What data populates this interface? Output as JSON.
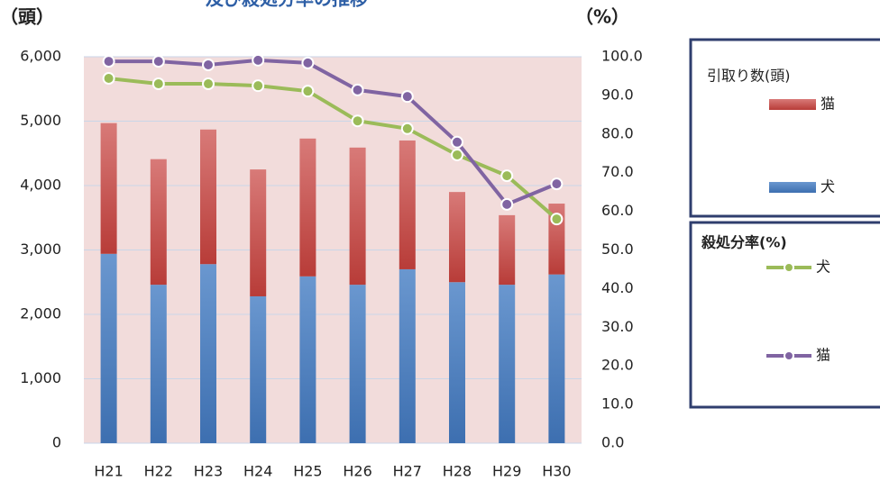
{
  "chart_data": {
    "type": "bar-line",
    "title": "及び殺処分率の推移",
    "y_label": "（頭）",
    "y2_label": "（%）",
    "categories": [
      "H21",
      "H22",
      "H23",
      "H24",
      "H25",
      "H26",
      "H27",
      "H28",
      "H29",
      "H30"
    ],
    "series": [
      {
        "name": "犬",
        "kind": "bar",
        "color": "#4f81bd",
        "values": [
          2940,
          2460,
          2780,
          2280,
          2590,
          2460,
          2700,
          2500,
          2460,
          2620
        ]
      },
      {
        "name": "猫",
        "kind": "bar",
        "color": "#c0504d",
        "values": [
          2030,
          1950,
          2090,
          1970,
          2140,
          2130,
          2000,
          1400,
          1080,
          1100
        ]
      },
      {
        "name": "犬",
        "kind": "line",
        "axis": "y2",
        "color": "#9bbb59",
        "values": [
          94.4,
          93.0,
          93.0,
          92.5,
          91.1,
          83.4,
          81.4,
          74.6,
          69.2,
          58.0
        ]
      },
      {
        "name": "猫",
        "kind": "line",
        "axis": "y2",
        "color": "#8064a2",
        "values": [
          98.8,
          98.8,
          97.9,
          99.1,
          98.4,
          91.4,
          89.7,
          77.9,
          61.8,
          67.1
        ]
      }
    ],
    "legend_titles": [
      "引取り数(頭)",
      "殺処分率(%)"
    ],
    "ylim": [
      0,
      6000
    ],
    "yticks": [
      0,
      {
        "value": 1000,
        "label": "1,000"
      },
      {
        "value": 2000,
        "label": "2,000"
      },
      {
        "value": 3000,
        "label": "3,000"
      },
      {
        "value": 4000,
        "label": "4,000"
      },
      {
        "value": 5000,
        "label": "5,000"
      },
      {
        "value": 6000,
        "label": "6,000"
      }
    ],
    "y2lim": [
      0,
      100
    ],
    "y2ticks": [
      {
        "value": 0,
        "label": "0.0"
      },
      {
        "value": 10,
        "label": "10.0"
      },
      {
        "value": 20,
        "label": "20.0"
      },
      {
        "value": 30,
        "label": "30.0"
      },
      {
        "value": 40,
        "label": "40.0"
      },
      {
        "value": 50,
        "label": "50.0"
      },
      {
        "value": 60,
        "label": "60.0"
      },
      {
        "value": 70,
        "label": "70.0"
      },
      {
        "value": 80,
        "label": "80.0"
      },
      {
        "value": 90,
        "label": "90.0"
      },
      {
        "value": 100,
        "label": "100.0"
      }
    ],
    "grid": true
  }
}
